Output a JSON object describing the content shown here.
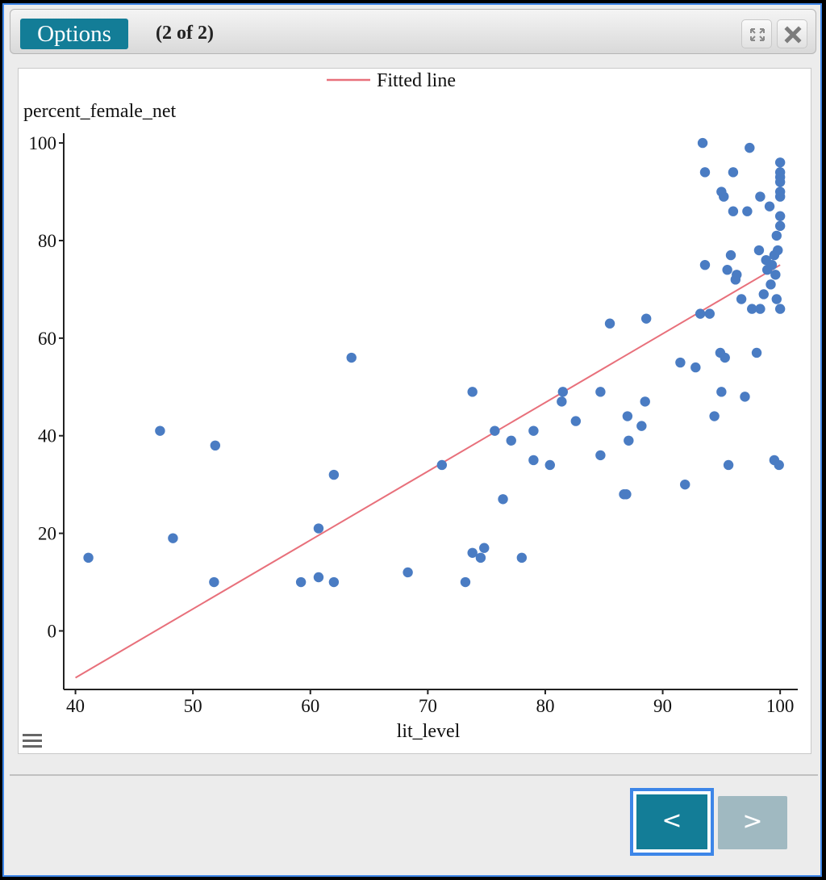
{
  "toolbar": {
    "options_label": "Options",
    "page_counter": "(2 of 2)",
    "expand_icon": "expand-icon",
    "close_icon": "close-icon"
  },
  "navigation": {
    "prev_label": "<",
    "next_label": ">"
  },
  "colors": {
    "accent": "#137d97",
    "point": "#4a7cc3",
    "fitted_line": "#e8707b",
    "focus_ring": "#3d86e8"
  },
  "chart_data": {
    "type": "scatter",
    "xlabel": "lit_level",
    "ylabel": "percent_female_net",
    "xlim": [
      39,
      101.5
    ],
    "ylim": [
      -12,
      102
    ],
    "xticks": [
      40,
      50,
      60,
      70,
      80,
      90,
      100
    ],
    "yticks": [
      0,
      20,
      40,
      60,
      80,
      100
    ],
    "grid": false,
    "legend": {
      "position": "top-center",
      "entries": [
        "Fitted line"
      ]
    },
    "series": [
      {
        "kind": "points",
        "points": [
          [
            41.1,
            15
          ],
          [
            47.2,
            41
          ],
          [
            48.3,
            19
          ],
          [
            51.8,
            10
          ],
          [
            51.9,
            38
          ],
          [
            59.2,
            10
          ],
          [
            60.7,
            11
          ],
          [
            60.7,
            21
          ],
          [
            62.0,
            10
          ],
          [
            62.0,
            32
          ],
          [
            63.5,
            56
          ],
          [
            68.3,
            12
          ],
          [
            71.2,
            34
          ],
          [
            73.2,
            10
          ],
          [
            73.8,
            16
          ],
          [
            73.8,
            49
          ],
          [
            74.5,
            15
          ],
          [
            74.8,
            17
          ],
          [
            75.7,
            41
          ],
          [
            76.4,
            27
          ],
          [
            77.1,
            39
          ],
          [
            78.0,
            15
          ],
          [
            79.0,
            35
          ],
          [
            79.0,
            41
          ],
          [
            80.4,
            34
          ],
          [
            81.4,
            47
          ],
          [
            81.5,
            49
          ],
          [
            82.6,
            43
          ],
          [
            84.7,
            36
          ],
          [
            84.7,
            49
          ],
          [
            85.5,
            63
          ],
          [
            86.7,
            28
          ],
          [
            86.9,
            28
          ],
          [
            87.0,
            44
          ],
          [
            87.1,
            39
          ],
          [
            88.2,
            42
          ],
          [
            88.5,
            47
          ],
          [
            88.6,
            64
          ],
          [
            91.5,
            55
          ],
          [
            91.9,
            30
          ],
          [
            92.8,
            54
          ],
          [
            93.2,
            65
          ],
          [
            93.4,
            100
          ],
          [
            93.6,
            94
          ],
          [
            93.6,
            75
          ],
          [
            94.0,
            65
          ],
          [
            94.4,
            44
          ],
          [
            94.9,
            57
          ],
          [
            95.0,
            90
          ],
          [
            95.0,
            49
          ],
          [
            95.2,
            89
          ],
          [
            95.3,
            56
          ],
          [
            95.5,
            74
          ],
          [
            95.6,
            34
          ],
          [
            95.8,
            77
          ],
          [
            96.0,
            94
          ],
          [
            96.0,
            86
          ],
          [
            96.2,
            72
          ],
          [
            96.3,
            73
          ],
          [
            96.7,
            68
          ],
          [
            97.0,
            48
          ],
          [
            97.2,
            86
          ],
          [
            97.4,
            99
          ],
          [
            97.6,
            66
          ],
          [
            98.0,
            57
          ],
          [
            98.2,
            78
          ],
          [
            98.3,
            66
          ],
          [
            98.3,
            89
          ],
          [
            98.6,
            69
          ],
          [
            98.8,
            76
          ],
          [
            98.9,
            74
          ],
          [
            99.1,
            87
          ],
          [
            99.2,
            71
          ],
          [
            99.3,
            75
          ],
          [
            99.5,
            77
          ],
          [
            99.5,
            35
          ],
          [
            99.6,
            73
          ],
          [
            99.7,
            68
          ],
          [
            99.7,
            81
          ],
          [
            99.8,
            78
          ],
          [
            99.9,
            34
          ],
          [
            100.0,
            96
          ],
          [
            100.0,
            94
          ],
          [
            100.0,
            93
          ],
          [
            100.0,
            92
          ],
          [
            100.0,
            90
          ],
          [
            100.0,
            89
          ],
          [
            100.0,
            85
          ],
          [
            100.0,
            83
          ],
          [
            100.0,
            66
          ]
        ]
      },
      {
        "name": "Fitted line",
        "kind": "line",
        "points": [
          [
            40,
            -9.6
          ],
          [
            100,
            75.0
          ]
        ]
      }
    ]
  }
}
